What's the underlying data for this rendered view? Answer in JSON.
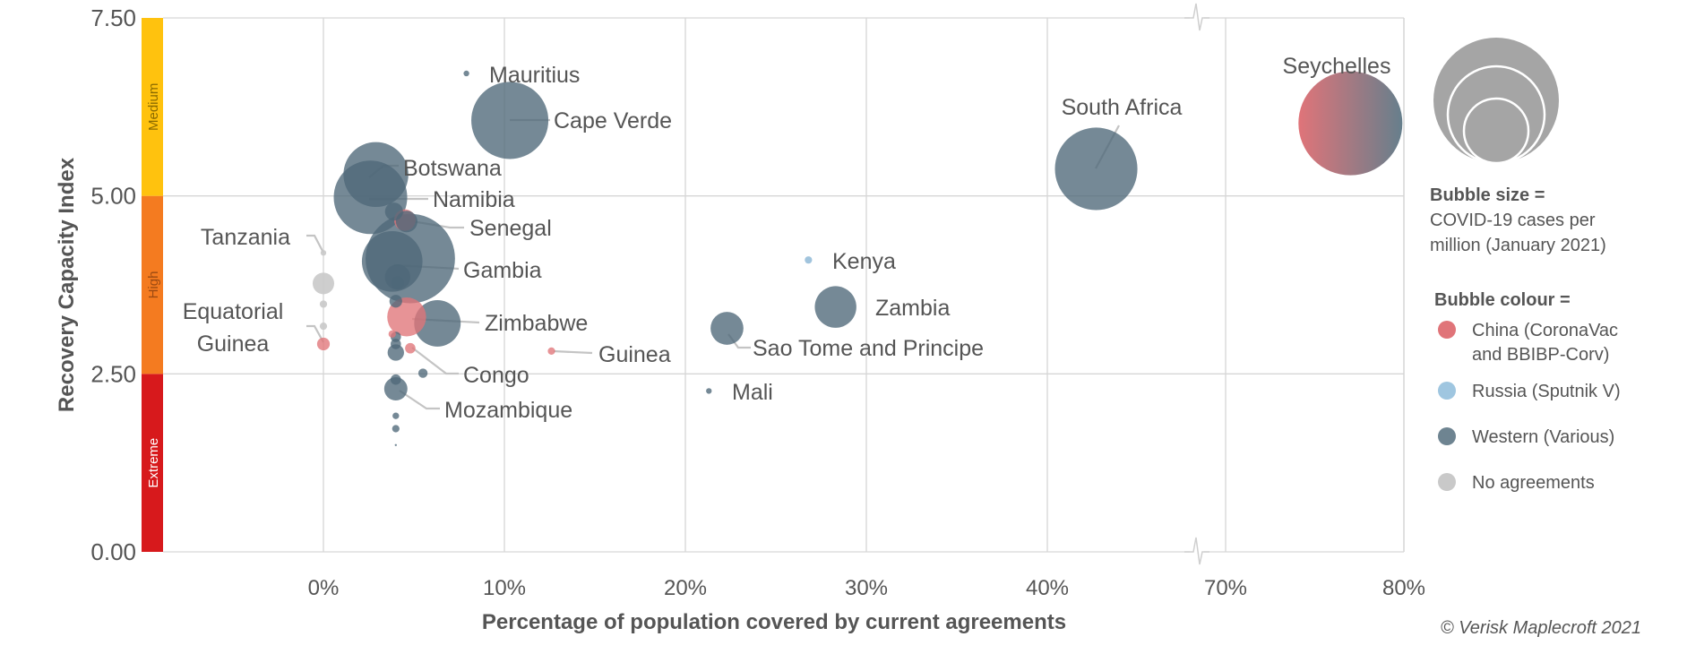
{
  "chart_data": {
    "type": "scatter",
    "subtype": "bubble",
    "xlabel": "Percentage of population covered by current agreements",
    "ylabel": "Recovery Capacity Index",
    "x_ticks": [
      "0%",
      "10%",
      "20%",
      "30%",
      "40%",
      "70%",
      "80%"
    ],
    "x_tick_values": [
      0,
      10,
      20,
      30,
      40,
      70,
      80
    ],
    "x_axis_break": [
      48,
      70
    ],
    "y_ticks": [
      "0.00",
      "2.50",
      "5.00",
      "7.50"
    ],
    "y_tick_values": [
      0,
      2.5,
      5,
      7.5
    ],
    "ylim": [
      0,
      7.5
    ],
    "grid": true,
    "risk_bands": [
      {
        "label": "Extreme",
        "from": 0,
        "to": 2.5,
        "color": "#d7191c"
      },
      {
        "label": "High",
        "from": 2.5,
        "to": 5,
        "color": "#f47b20"
      },
      {
        "label": "Medium",
        "from": 5,
        "to": 7.5,
        "color": "#ffc20e"
      }
    ],
    "groups": {
      "china": {
        "label_lines": [
          "China (CoronaVac",
          "and BBIBP-Corv)"
        ],
        "color": "#e07479"
      },
      "russia": {
        "label_lines": [
          "Russia (Sputnik V)"
        ],
        "color": "#9fc6e0"
      },
      "western": {
        "label_lines": [
          "Western (Various)"
        ],
        "color": "#4e6878"
      },
      "none": {
        "label_lines": [
          "No agreements"
        ],
        "color": "#c9c9c9"
      }
    },
    "points": [
      {
        "label": "Seychelles",
        "x": 77,
        "y": 6.02,
        "size": 100,
        "group": "china+western"
      },
      {
        "label": "South Africa",
        "x": 42.7,
        "y": 5.38,
        "size": 63,
        "group": "western"
      },
      {
        "label": "Cape Verde",
        "x": 10.3,
        "y": 6.06,
        "size": 55,
        "group": "western"
      },
      {
        "label": "Mauritius",
        "x": 7.9,
        "y": 6.72,
        "size": 0.3,
        "group": "western"
      },
      {
        "label": "Botswana",
        "x": 2.9,
        "y": 5.3,
        "size": 39,
        "group": "western"
      },
      {
        "label": "Namibia",
        "x": 2.6,
        "y": 4.98,
        "size": 50,
        "group": "western"
      },
      {
        "label": "",
        "x": 3.9,
        "y": 4.78,
        "size": 3,
        "group": "western"
      },
      {
        "label": "Senegal",
        "x": 4.5,
        "y": 4.66,
        "size": 4.3,
        "group": "china"
      },
      {
        "label": "",
        "x": 4.6,
        "y": 4.64,
        "size": 4.3,
        "group": "western"
      },
      {
        "label": "",
        "x": 4.8,
        "y": 4.12,
        "size": 74,
        "group": "western"
      },
      {
        "label": "Gambia",
        "x": 3.8,
        "y": 4.08,
        "size": 34,
        "group": "western"
      },
      {
        "label": "",
        "x": 4.1,
        "y": 3.86,
        "size": 6,
        "group": "western"
      },
      {
        "label": "",
        "x": 4.1,
        "y": 3.78,
        "size": 1.5,
        "group": "western"
      },
      {
        "label": "",
        "x": 4.0,
        "y": 3.52,
        "size": 1.5,
        "group": "western"
      },
      {
        "label": "",
        "x": 4.6,
        "y": 3.3,
        "size": 14,
        "group": "china"
      },
      {
        "label": "Zimbabwe",
        "x": 6.3,
        "y": 3.21,
        "size": 20,
        "group": "western"
      },
      {
        "label": "",
        "x": 3.8,
        "y": 3.06,
        "size": 0.5,
        "group": "china"
      },
      {
        "label": "",
        "x": 4.0,
        "y": 3.02,
        "size": 1,
        "group": "western"
      },
      {
        "label": "",
        "x": 4.0,
        "y": 2.92,
        "size": 1,
        "group": "western"
      },
      {
        "label": "",
        "x": 4.0,
        "y": 2.8,
        "size": 2.5,
        "group": "western"
      },
      {
        "label": "Congo",
        "x": 4.8,
        "y": 2.86,
        "size": 1,
        "group": "china"
      },
      {
        "label": "",
        "x": 5.5,
        "y": 2.51,
        "size": 0.8,
        "group": "western"
      },
      {
        "label": "",
        "x": 4.0,
        "y": 2.42,
        "size": 1,
        "group": "western"
      },
      {
        "label": "Mozambique",
        "x": 4.0,
        "y": 2.29,
        "size": 5,
        "group": "western"
      },
      {
        "label": "",
        "x": 4.0,
        "y": 1.91,
        "size": 0.4,
        "group": "western"
      },
      {
        "label": "",
        "x": 4.0,
        "y": 1.73,
        "size": 0.5,
        "group": "western"
      },
      {
        "label": "",
        "x": 4.0,
        "y": 1.5,
        "size": 0.02,
        "group": "western"
      },
      {
        "label": "Tanzania",
        "x": 0,
        "y": 4.2,
        "size": 0.3,
        "group": "none"
      },
      {
        "label": "",
        "x": 0,
        "y": 3.77,
        "size": 4.3,
        "group": "none"
      },
      {
        "label": "",
        "x": 0,
        "y": 3.48,
        "size": 0.5,
        "group": "none"
      },
      {
        "label": "",
        "x": 0,
        "y": 3.17,
        "size": 0.5,
        "group": "none"
      },
      {
        "label": "Equatorial Guinea",
        "x": 0,
        "y": 2.92,
        "size": 1.5,
        "group": "china"
      },
      {
        "label": "Kenya",
        "x": 26.8,
        "y": 4.1,
        "size": 0.5,
        "group": "russia"
      },
      {
        "label": "Zambia",
        "x": 28.3,
        "y": 3.44,
        "size": 16,
        "group": "western"
      },
      {
        "label": "Sao Tome and Principe",
        "x": 22.3,
        "y": 3.14,
        "size": 10,
        "group": "western"
      },
      {
        "label": "Guinea",
        "x": 12.6,
        "y": 2.82,
        "size": 0.5,
        "group": "china"
      },
      {
        "label": "Mali",
        "x": 21.3,
        "y": 2.26,
        "size": 0.3,
        "group": "western"
      }
    ]
  },
  "legend": {
    "size_title": "Bubble size =",
    "size_lines": [
      "COVID-19 cases per",
      "million (January 2021)"
    ],
    "colour_title": "Bubble colour ="
  },
  "credit": "© Verisk Maplecroft 2021"
}
